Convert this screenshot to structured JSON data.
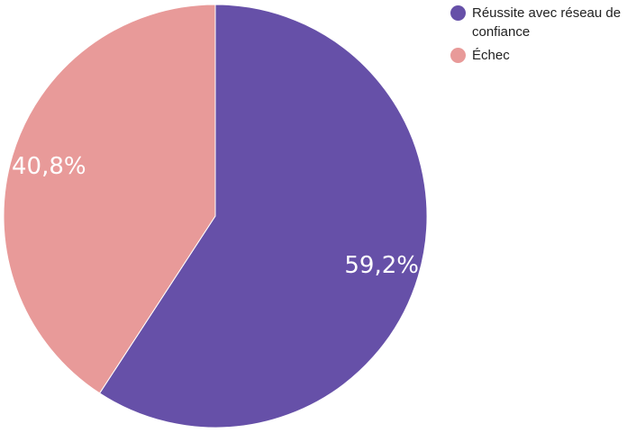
{
  "chart_data": {
    "type": "pie",
    "categories": [
      "Réussite avec réseau de confiance",
      "Échec"
    ],
    "values": [
      59.2,
      40.8
    ],
    "labels": [
      "59,2%",
      "40,8%"
    ],
    "colors": [
      "#6650a8",
      "#e89a99"
    ],
    "start_angle": "12 o'clock",
    "direction": "clockwise",
    "legend_position": "top-right"
  }
}
